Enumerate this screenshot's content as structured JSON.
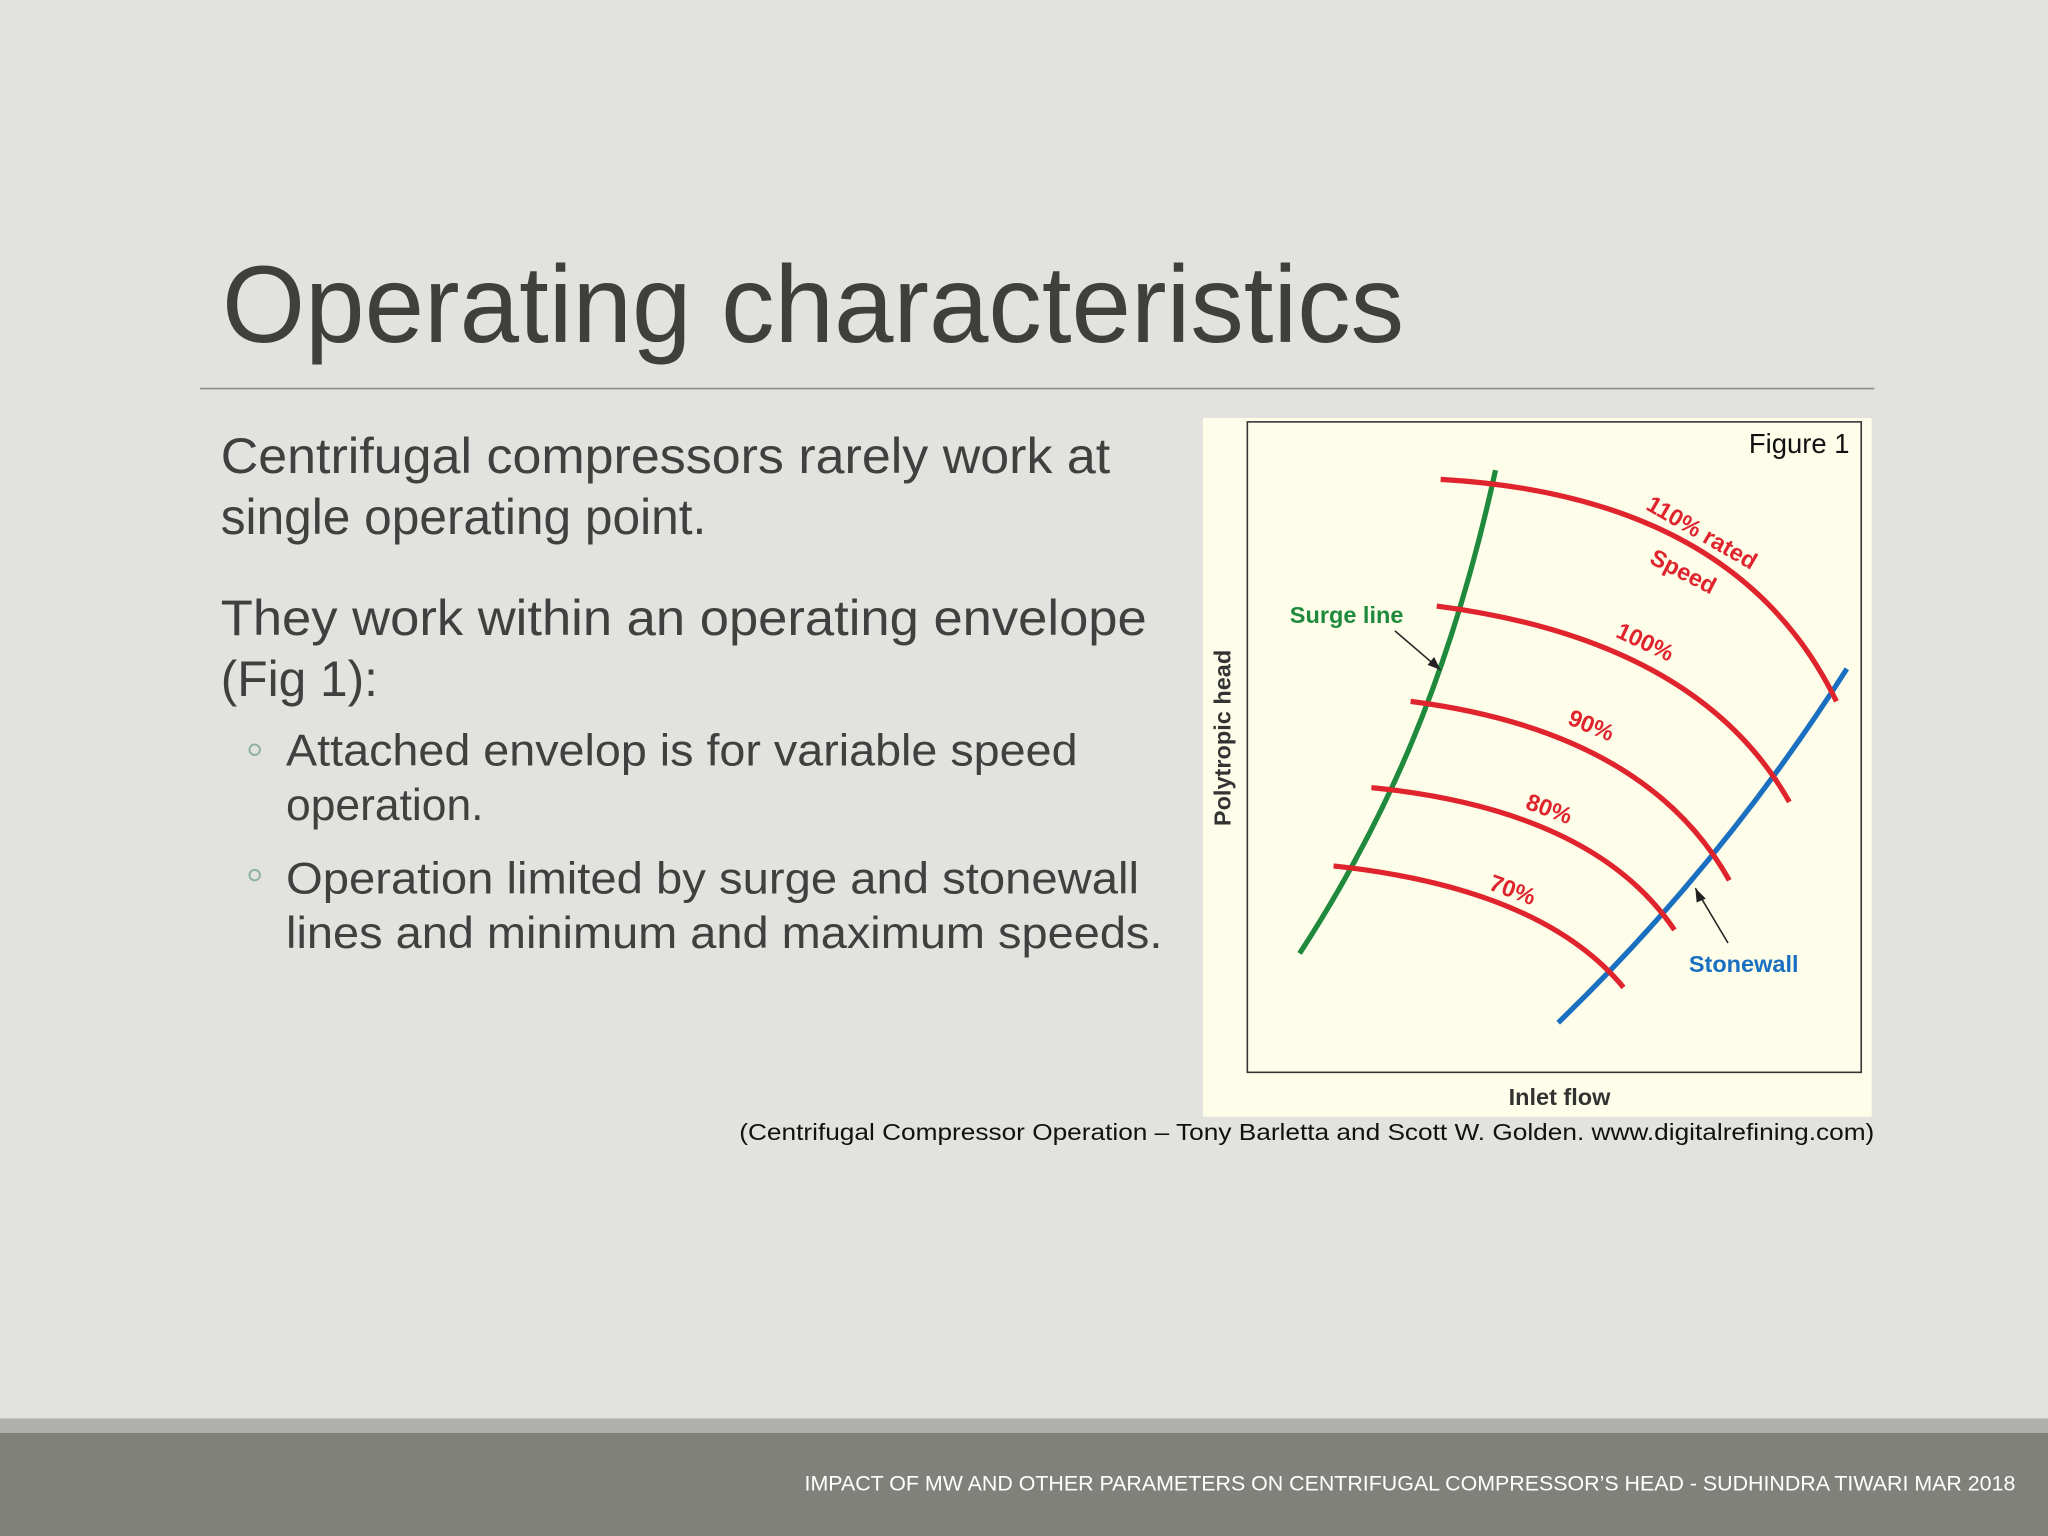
{
  "slide": {
    "title": "Operating characteristics",
    "paragraphs": [
      {
        "lines": [
          "Centrifugal compressors rarely work at",
          "single operating point."
        ]
      },
      {
        "lines": [
          "They work within an operating envelope",
          "(Fig 1):"
        ]
      }
    ],
    "bullets": [
      {
        "lines": [
          "Attached envelop is for variable speed",
          "operation."
        ]
      },
      {
        "lines": [
          "Operation limited by surge and stonewall",
          "lines and minimum and maximum speeds."
        ]
      }
    ],
    "figure": {
      "label": "Figure 1",
      "y_axis": "Polytropic head",
      "x_axis": "Inlet flow",
      "surge_label": "Surge line",
      "stonewall_label": "Stonewall",
      "speed_labels": [
        "110% rated",
        "Speed",
        "100%",
        "90%",
        "80%",
        "70%"
      ]
    },
    "caption": "(Centrifugal Compressor Operation – Tony Barletta and Scott W. Golden. www.digitalrefining.com)",
    "footer": "IMPACT OF MW AND OTHER PARAMETERS ON CENTRIFUGAL COMPRESSOR’S HEAD - SUDHINDRA TIWARI MAR 2018"
  }
}
